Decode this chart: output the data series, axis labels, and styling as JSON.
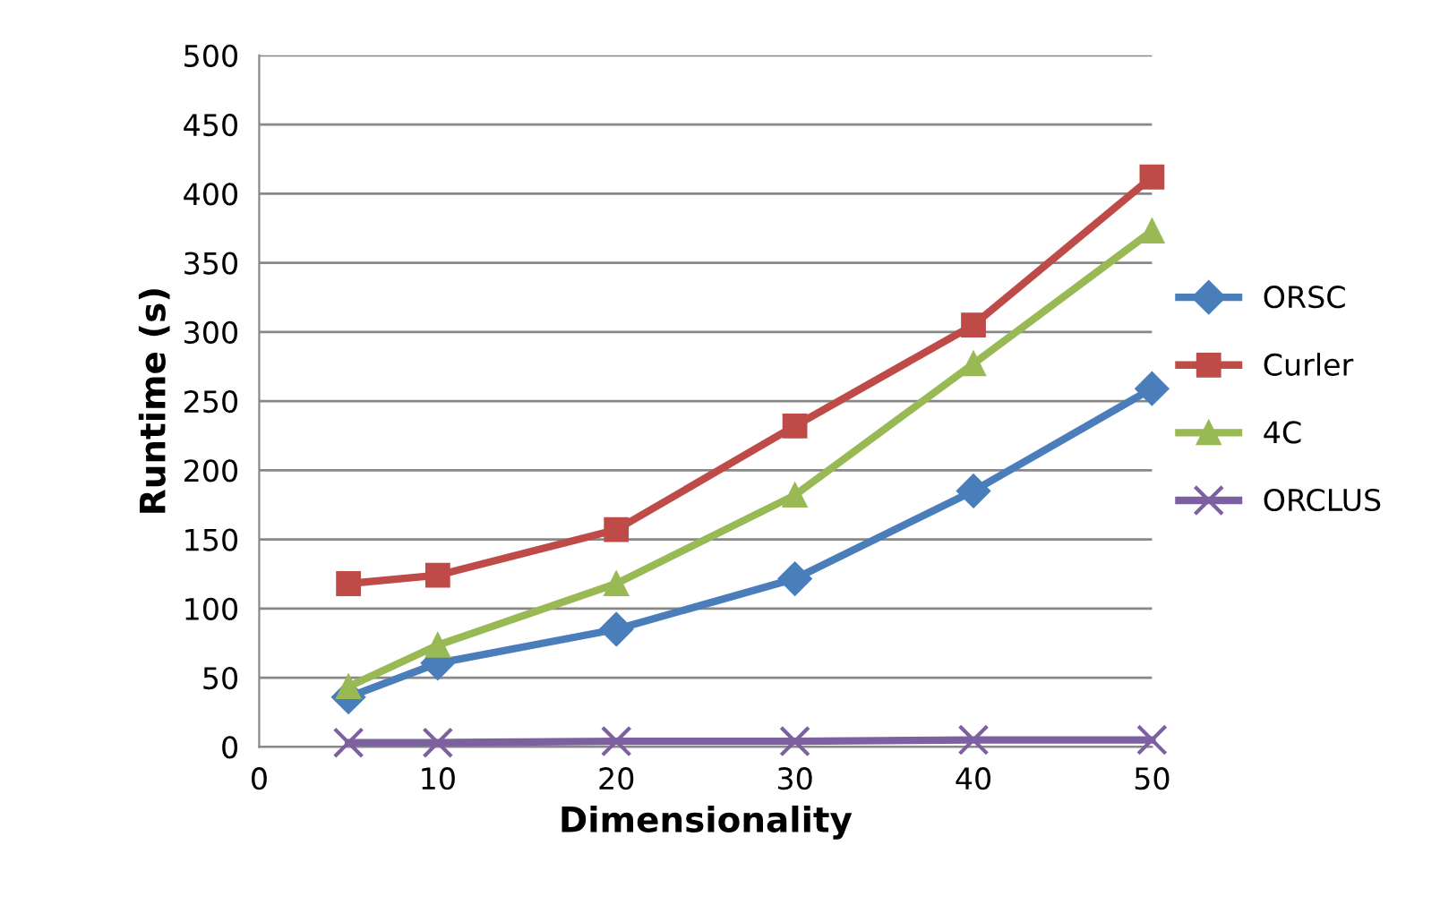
{
  "chart_data": {
    "type": "line",
    "xlabel": "Dimensionality",
    "ylabel": "Runtime (s)",
    "x": [
      5,
      10,
      20,
      30,
      40,
      50
    ],
    "series": [
      {
        "name": "ORSC",
        "color": "#4a7ebb",
        "marker": "diamond",
        "values": [
          36,
          60.5,
          85,
          121.5,
          185,
          259
        ]
      },
      {
        "name": "Curler",
        "color": "#be4b48",
        "marker": "square",
        "values": [
          118,
          124,
          157,
          232,
          305,
          412
        ]
      },
      {
        "name": "4C",
        "color": "#98b954",
        "marker": "triangle",
        "values": [
          43.5,
          73.5,
          118,
          182,
          277,
          373
        ]
      },
      {
        "name": "ORCLUS",
        "color": "#7d60a0",
        "marker": "cross",
        "values": [
          3,
          3,
          4,
          4,
          5,
          5
        ]
      }
    ],
    "xlim": [
      0,
      50
    ],
    "xticks": [
      0,
      10,
      20,
      30,
      40,
      50
    ],
    "ylim": [
      0,
      500
    ],
    "yticks": [
      0,
      50,
      100,
      150,
      200,
      250,
      300,
      350,
      400,
      450,
      500
    ],
    "grid": "y",
    "legend": "right",
    "line_style": "solid"
  }
}
